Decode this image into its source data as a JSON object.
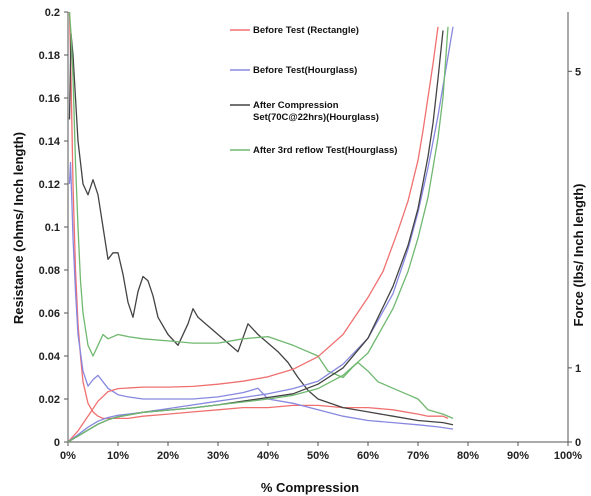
{
  "chart_data": {
    "type": "line",
    "title": "",
    "xlabel": "% Compression",
    "ylabel": "Resistance (ohms/ Inch length)",
    "y2label": "Force (lbs/ Inch length)",
    "xlim": [
      0,
      100
    ],
    "ylim": [
      0,
      0.2
    ],
    "y2lim": [
      0,
      5.8
    ],
    "x_ticks": [
      "0%",
      "10%",
      "20%",
      "30%",
      "40%",
      "50%",
      "60%",
      "70%",
      "80%",
      "90%",
      "100%"
    ],
    "y_ticks": [
      "0",
      "0.02",
      "0.04",
      "0.06",
      "0.08",
      "0.1",
      "0.12",
      "0.14",
      "0.16",
      "0.18",
      "0.2"
    ],
    "y2_ticks": [
      "0",
      "1",
      "5"
    ],
    "grid": false,
    "legend_position": "top-center",
    "resistance_series": [
      {
        "name": "Before Test (Rectangle)",
        "color": "#f07070",
        "x": [
          0.3,
          0.6,
          1,
          1.5,
          2,
          2.5,
          3,
          4,
          5,
          6,
          7,
          8,
          10,
          12,
          15,
          20,
          25,
          30,
          35,
          40,
          45,
          50,
          55,
          60,
          65,
          70,
          72,
          75,
          76
        ],
        "y": [
          0.2,
          0.17,
          0.12,
          0.08,
          0.055,
          0.04,
          0.028,
          0.018,
          0.014,
          0.012,
          0.011,
          0.011,
          0.011,
          0.011,
          0.012,
          0.013,
          0.014,
          0.015,
          0.016,
          0.016,
          0.017,
          0.017,
          0.016,
          0.016,
          0.015,
          0.013,
          0.012,
          0.012,
          0.011
        ]
      },
      {
        "name": "Before Test(Hourglass)",
        "color": "#8888e0",
        "x": [
          0.3,
          0.5,
          0.8,
          1,
          1.5,
          2,
          3,
          4,
          5,
          6,
          7,
          8,
          10,
          12,
          15,
          20,
          25,
          30,
          35,
          38,
          40,
          45,
          50,
          55,
          60,
          65,
          70,
          74,
          77
        ],
        "y": [
          0.12,
          0.13,
          0.11,
          0.095,
          0.07,
          0.05,
          0.033,
          0.026,
          0.029,
          0.031,
          0.028,
          0.025,
          0.022,
          0.021,
          0.02,
          0.02,
          0.02,
          0.021,
          0.023,
          0.025,
          0.02,
          0.018,
          0.015,
          0.012,
          0.01,
          0.009,
          0.008,
          0.007,
          0.006
        ]
      },
      {
        "name": "After Compression Set(70C@22hrs)(Hourglass)",
        "color": "#444444",
        "x": [
          0.3,
          0.6,
          1,
          1.5,
          2,
          3,
          4,
          5,
          6,
          7,
          8,
          9,
          10,
          11,
          12,
          13,
          14,
          15,
          16,
          17,
          18,
          20,
          22,
          24,
          25,
          26,
          28,
          30,
          32,
          34,
          36,
          38,
          40,
          42,
          44,
          46,
          48,
          50,
          55,
          60,
          65,
          70,
          75,
          77
        ],
        "y": [
          0.15,
          0.19,
          0.18,
          0.16,
          0.14,
          0.12,
          0.115,
          0.122,
          0.115,
          0.1,
          0.085,
          0.088,
          0.088,
          0.078,
          0.065,
          0.058,
          0.07,
          0.077,
          0.075,
          0.068,
          0.058,
          0.05,
          0.045,
          0.055,
          0.062,
          0.058,
          0.054,
          0.05,
          0.046,
          0.042,
          0.055,
          0.05,
          0.046,
          0.042,
          0.037,
          0.03,
          0.024,
          0.02,
          0.016,
          0.014,
          0.012,
          0.01,
          0.009,
          0.008
        ]
      },
      {
        "name": "After 3rd reflow Test(Hourglass)",
        "color": "#70b870",
        "x": [
          0.3,
          0.6,
          1,
          1.5,
          2,
          2.5,
          3,
          4,
          5,
          6,
          7,
          8,
          10,
          12,
          15,
          20,
          25,
          30,
          35,
          40,
          45,
          50,
          52,
          55,
          57,
          58,
          60,
          62,
          65,
          68,
          70,
          72,
          75,
          77
        ],
        "y": [
          0.2,
          0.19,
          0.17,
          0.13,
          0.1,
          0.075,
          0.06,
          0.045,
          0.04,
          0.045,
          0.05,
          0.048,
          0.05,
          0.049,
          0.048,
          0.047,
          0.046,
          0.046,
          0.048,
          0.049,
          0.045,
          0.04,
          0.033,
          0.03,
          0.035,
          0.037,
          0.033,
          0.028,
          0.025,
          0.022,
          0.02,
          0.015,
          0.013,
          0.011
        ]
      }
    ],
    "force_series": [
      {
        "name": "Before Test (Rectangle)",
        "color": "#f07070",
        "x": [
          0,
          2,
          4,
          6,
          8,
          10,
          15,
          20,
          25,
          30,
          35,
          40,
          45,
          50,
          55,
          60,
          63,
          66,
          68,
          70,
          71,
          72,
          73,
          74
        ],
        "y": [
          0,
          0.15,
          0.35,
          0.55,
          0.68,
          0.72,
          0.74,
          0.74,
          0.75,
          0.78,
          0.82,
          0.88,
          0.98,
          1.15,
          1.45,
          1.95,
          2.3,
          2.85,
          3.25,
          3.8,
          4.2,
          4.65,
          5.1,
          5.6
        ]
      },
      {
        "name": "Before Test(Hourglass)",
        "color": "#8888e0",
        "x": [
          0,
          2,
          4,
          6,
          8,
          10,
          15,
          20,
          25,
          30,
          35,
          40,
          45,
          50,
          55,
          60,
          65,
          68,
          70,
          72,
          74,
          75,
          76,
          77
        ],
        "y": [
          0,
          0.1,
          0.2,
          0.28,
          0.33,
          0.36,
          0.4,
          0.45,
          0.5,
          0.55,
          0.6,
          0.65,
          0.72,
          0.82,
          1.05,
          1.4,
          2,
          2.6,
          3.1,
          3.7,
          4.4,
          4.8,
          5.2,
          5.6
        ]
      },
      {
        "name": "After Compression Set(70C@22hrs)(Hourglass)",
        "color": "#444444",
        "x": [
          0,
          2,
          4,
          6,
          8,
          10,
          15,
          20,
          25,
          30,
          35,
          40,
          45,
          50,
          55,
          60,
          65,
          68,
          70,
          72,
          73,
          74,
          75
        ],
        "y": [
          0,
          0.08,
          0.16,
          0.24,
          0.3,
          0.34,
          0.4,
          0.43,
          0.46,
          0.5,
          0.55,
          0.6,
          0.65,
          0.78,
          1,
          1.4,
          2.1,
          2.65,
          3.15,
          3.85,
          4.3,
          4.9,
          5.55
        ]
      },
      {
        "name": "After 3rd reflow Test(Hourglass)",
        "color": "#70b870",
        "x": [
          0,
          2,
          4,
          6,
          8,
          10,
          15,
          20,
          25,
          30,
          35,
          40,
          45,
          50,
          55,
          60,
          65,
          68,
          70,
          72,
          74,
          75,
          76
        ],
        "y": [
          0,
          0.08,
          0.16,
          0.24,
          0.3,
          0.34,
          0.4,
          0.43,
          0.46,
          0.5,
          0.54,
          0.58,
          0.63,
          0.72,
          0.9,
          1.2,
          1.8,
          2.3,
          2.75,
          3.3,
          4.1,
          4.65,
          5.6
        ]
      }
    ],
    "legend": [
      {
        "label": "Before Test (Rectangle)",
        "color": "#f07070"
      },
      {
        "label": "Before Test(Hourglass)",
        "color": "#8888e0"
      },
      {
        "label": "After Compression",
        "label2": "Set(70C@22hrs)(Hourglass)",
        "color": "#444444"
      },
      {
        "label": "After 3rd reflow Test(Hourglass)",
        "color": "#70b870"
      }
    ]
  }
}
